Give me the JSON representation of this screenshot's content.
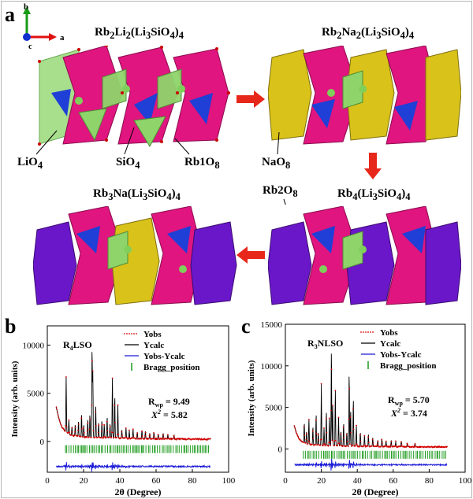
{
  "panel_labels": {
    "a": "a",
    "b": "b",
    "c": "c"
  },
  "axes_glyph": {
    "b": "b",
    "a": "a",
    "c": "c"
  },
  "structures": {
    "s1": {
      "pre": "Rb",
      "s1": "2",
      "mid": "Li",
      "s2": "2",
      "mid2": "(Li",
      "s3": "3",
      "mid3": "SiO",
      "s4": "4",
      "post": ")",
      "s5": "4"
    },
    "s2": {
      "pre": "Rb",
      "s1": "2",
      "mid": "Na",
      "s2": "2",
      "mid2": "(Li",
      "s3": "3",
      "mid3": "SiO",
      "s4": "4",
      "post": ")",
      "s5": "4"
    },
    "s3": {
      "pre": "Rb",
      "s1": "3",
      "mid": "Na(Li",
      "s3": "3",
      "mid3": "SiO",
      "s4": "4",
      "post": ")",
      "s5": "4"
    },
    "s4": {
      "pre": "Rb",
      "s1": "4",
      "mid": "(Li",
      "s3": "3",
      "mid3": "SiO",
      "s4": "4",
      "post": ")",
      "s5": "4"
    }
  },
  "polyhedra_labels": {
    "lio4": {
      "main": "LiO",
      "sub": "4"
    },
    "sio4": {
      "main": "SiO",
      "sub": "4"
    },
    "rb1o8": {
      "main": "Rb1O",
      "sub": "8"
    },
    "nao8": {
      "main": "NaO",
      "sub": "8"
    },
    "rb2o8": {
      "main": "Rb2O",
      "sub": "8"
    }
  },
  "colors": {
    "magenta": "#e0157f",
    "green": "#8fd46a",
    "blue": "#1f3fd6",
    "yellow": "#d9c21a",
    "purple": "#6a17c9",
    "obs": "#d40000",
    "calc": "#000000",
    "diff": "#1a1ad8",
    "bragg": "#1e9b1e"
  },
  "chart_data": [
    {
      "type": "line",
      "sample": "R4LSO",
      "sample_main": "R",
      "sample_sub": "4",
      "sample_rest": "LSO",
      "xlabel": "2θ (Degree)",
      "ylabel": "Intensity (arb. units)",
      "xlim": [
        0,
        100
      ],
      "ylim": [
        -3200,
        12000
      ],
      "xticks": [
        0,
        20,
        40,
        60,
        80,
        100
      ],
      "yticks": [
        0,
        5000,
        10000
      ],
      "legend": [
        "Yobs",
        "Ycalc",
        "Yobs-Ycalc",
        "Bragg_position"
      ],
      "rwp": "= 9.49",
      "rwp_label": "R",
      "rwp_sub": "wp",
      "chi2": "= 5.82",
      "chi_label": "X",
      "chi_sup": "2",
      "diff_offset": -2600,
      "bragg_level": -800,
      "background": {
        "x": [
          5,
          6,
          7,
          8,
          10,
          12,
          15,
          20,
          25,
          30,
          40,
          50,
          60,
          70,
          80,
          90
        ],
        "y": [
          3500,
          2700,
          2000,
          1500,
          1000,
          760,
          580,
          460,
          420,
          390,
          340,
          300,
          270,
          250,
          240,
          230
        ]
      },
      "peaks": [
        [
          10.4,
          5800
        ],
        [
          11.9,
          1500
        ],
        [
          13.6,
          900
        ],
        [
          15.4,
          1200
        ],
        [
          17.2,
          1600
        ],
        [
          18.9,
          2400
        ],
        [
          20.1,
          1300
        ],
        [
          22.3,
          1900
        ],
        [
          23.5,
          2400
        ],
        [
          24.7,
          9400
        ],
        [
          25.1,
          6800
        ],
        [
          26.7,
          3400
        ],
        [
          28.3,
          1600
        ],
        [
          30.1,
          1800
        ],
        [
          31.4,
          1400
        ],
        [
          33.0,
          2200
        ],
        [
          34.6,
          1500
        ],
        [
          35.9,
          6200
        ],
        [
          37.2,
          4400
        ],
        [
          38.9,
          3500
        ],
        [
          41.1,
          900
        ],
        [
          43.4,
          1100
        ],
        [
          45.2,
          800
        ],
        [
          47.3,
          1000
        ],
        [
          49.6,
          700
        ],
        [
          52.2,
          900
        ],
        [
          54.1,
          800
        ],
        [
          56.5,
          600
        ],
        [
          58.8,
          700
        ],
        [
          61.2,
          500
        ],
        [
          63.9,
          600
        ],
        [
          66.5,
          500
        ],
        [
          69.9,
          400
        ]
      ],
      "bragg_ranges": [
        [
          10,
          90
        ]
      ]
    },
    {
      "type": "line",
      "sample": "R3NLSO",
      "sample_main": "R",
      "sample_sub": "3",
      "sample_rest": "NLSO",
      "xlabel": "2θ (Degree)",
      "ylabel": "Intensity (arb. units)",
      "xlim": [
        0,
        100
      ],
      "ylim": [
        -2800,
        15000
      ],
      "xticks": [
        0,
        20,
        40,
        60,
        80,
        100
      ],
      "yticks": [
        0,
        5000,
        10000,
        15000
      ],
      "legend": [
        "Yobs",
        "Ycalc",
        "Yobs-Ycalc",
        "Bragg_position"
      ],
      "rwp": "= 5.70",
      "rwp_label": "R",
      "rwp_sub": "wp",
      "chi2": "= 3.74",
      "chi_label": "X",
      "chi_sup": "2",
      "diff_offset": -1900,
      "bragg_level": -700,
      "background": {
        "x": [
          5,
          6,
          7,
          8,
          10,
          12,
          15,
          20,
          25,
          30,
          40,
          50,
          60,
          70,
          80,
          90
        ],
        "y": [
          2800,
          2000,
          1500,
          1100,
          800,
          620,
          500,
          420,
          390,
          370,
          330,
          300,
          280,
          260,
          250,
          240
        ]
      },
      "peaks": [
        [
          10.5,
          2400
        ],
        [
          11.8,
          1500
        ],
        [
          13.1,
          3000
        ],
        [
          15.3,
          2200
        ],
        [
          17.1,
          3800
        ],
        [
          18.3,
          1600
        ],
        [
          20.0,
          7400
        ],
        [
          21.5,
          2100
        ],
        [
          22.8,
          4200
        ],
        [
          24.5,
          3300
        ],
        [
          25.6,
          11800
        ],
        [
          26.3,
          4800
        ],
        [
          27.8,
          6600
        ],
        [
          29.6,
          3400
        ],
        [
          30.9,
          1800
        ],
        [
          32.4,
          2800
        ],
        [
          34.2,
          1700
        ],
        [
          35.5,
          8900
        ],
        [
          36.3,
          4400
        ],
        [
          37.8,
          5800
        ],
        [
          39.5,
          2500
        ],
        [
          41.7,
          1700
        ],
        [
          44.0,
          1300
        ],
        [
          46.2,
          1500
        ],
        [
          48.6,
          1100
        ],
        [
          51.4,
          800
        ],
        [
          53.7,
          1000
        ],
        [
          56.0,
          700
        ],
        [
          58.9,
          800
        ],
        [
          61.4,
          600
        ],
        [
          64.5,
          700
        ],
        [
          67.8,
          500
        ],
        [
          72.1,
          400
        ]
      ],
      "bragg_ranges": [
        [
          10,
          90
        ]
      ]
    }
  ]
}
